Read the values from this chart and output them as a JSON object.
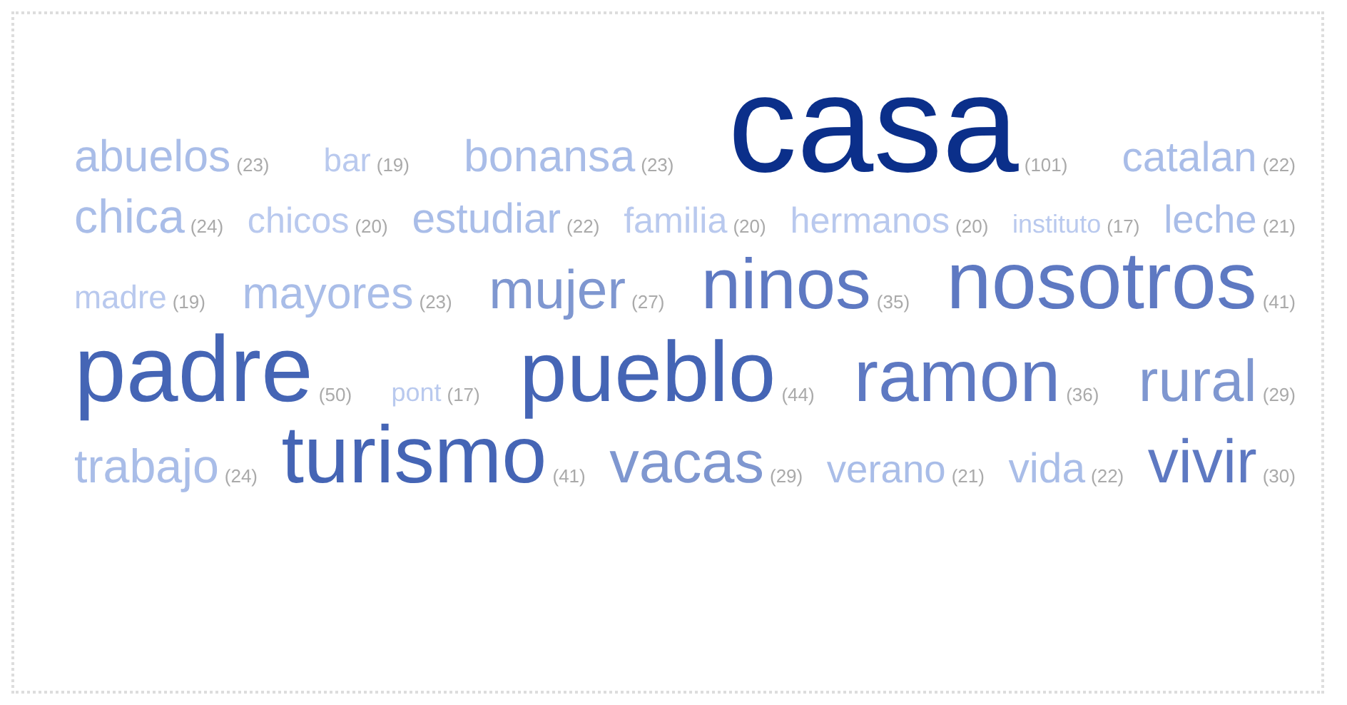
{
  "chart_data": {
    "type": "other",
    "categories": [
      "abuelos",
      "bar",
      "bonansa",
      "casa",
      "catalan",
      "chica",
      "chicos",
      "estudiar",
      "familia",
      "hermanos",
      "instituto",
      "leche",
      "madre",
      "mayores",
      "mujer",
      "ninos",
      "nosotros",
      "padre",
      "pont",
      "pueblo",
      "ramon",
      "rural",
      "trabajo",
      "turismo",
      "vacas",
      "verano",
      "vida",
      "vivir"
    ],
    "values": [
      23,
      19,
      23,
      101,
      22,
      24,
      20,
      22,
      20,
      20,
      17,
      21,
      19,
      23,
      27,
      35,
      41,
      50,
      17,
      44,
      36,
      29,
      24,
      41,
      29,
      21,
      22,
      30
    ],
    "value_labels": [
      "(23)",
      "(19)",
      "(23)",
      "(101)",
      "(22)",
      "(24)",
      "(20)",
      "(22)",
      "(20)",
      "(20)",
      "(17)",
      "(21)",
      "(19)",
      "(23)",
      "(27)",
      "(35)",
      "(41)",
      "(50)",
      "(17)",
      "(44)",
      "(36)",
      "(29)",
      "(24)",
      "(41)",
      "(29)",
      "(21)",
      "(22)",
      "(30)"
    ],
    "colors": [
      "#a9bde8",
      "#b9c9ee",
      "#a9bde8",
      "#0b2f8a",
      "#a9bde8",
      "#a9bde8",
      "#b9c9ee",
      "#a9bde8",
      "#b9c9ee",
      "#b9c9ee",
      "#b9c9ee",
      "#a9bde8",
      "#b9c9ee",
      "#a9bde8",
      "#7f97d0",
      "#5e79c2",
      "#5e79c2",
      "#4565b5",
      "#b9c9ee",
      "#4565b5",
      "#5e79c2",
      "#7f97d0",
      "#a9bde8",
      "#4565b5",
      "#7f97d0",
      "#a9bde8",
      "#a9bde8",
      "#5e79c2"
    ]
  }
}
